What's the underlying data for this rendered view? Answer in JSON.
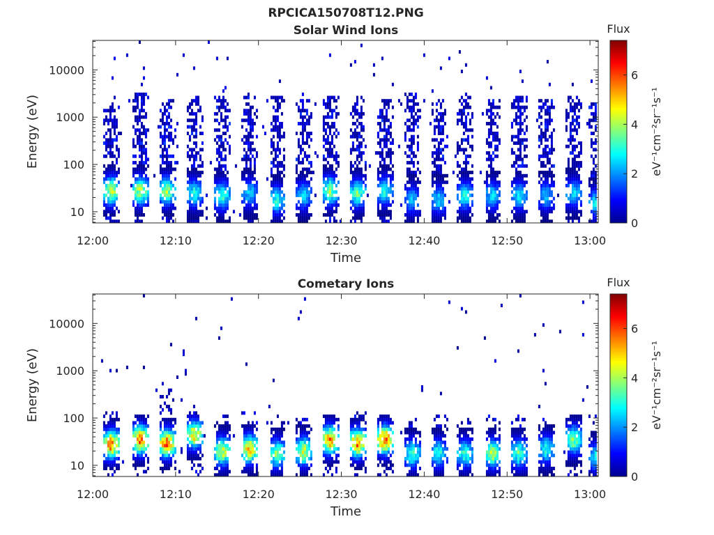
{
  "figure_title": "RPCICA150708T12.PNG",
  "chart_data": [
    {
      "type": "heatmap",
      "title": "Solar Wind Ions",
      "xlabel": "Time",
      "ylabel": "Energy (eV)",
      "x_tick_labels": [
        "12:00",
        "12:10",
        "12:20",
        "12:30",
        "12:40",
        "12:50",
        "13:00"
      ],
      "x_tick_minutes": [
        0,
        10,
        20,
        30,
        40,
        50,
        60
      ],
      "xlim_minutes": [
        0,
        61
      ],
      "y_scale": "log",
      "ylim": [
        5.8,
        42000
      ],
      "y_tick_values": [
        10,
        100,
        1000,
        10000
      ],
      "y_tick_labels": [
        "10",
        "100",
        "1000",
        "10000"
      ],
      "grid": false,
      "colorbar": {
        "title": "Flux",
        "label": "eV⁻¹cm⁻²sr⁻¹s⁻¹",
        "range": [
          0,
          7.4
        ],
        "tick_values": [
          0,
          2,
          4,
          6
        ],
        "tick_labels": [
          "0",
          "2",
          "4",
          "6"
        ],
        "colormap": "jet"
      },
      "sweep_minutes": [
        2.1,
        5.6,
        8.8,
        12.1,
        15.5,
        18.8,
        22.1,
        25.3,
        28.5,
        31.8,
        35.1,
        38.4,
        41.6,
        44.8,
        48.1,
        51.3,
        54.6,
        57.9,
        60.6
      ],
      "high_energy_max_ev": [
        1800,
        3500,
        2500,
        3200,
        2800,
        3000,
        2800,
        2600,
        2700,
        3000,
        2500,
        3500,
        2600,
        3300,
        2500,
        2900,
        2600,
        2800,
        2200
      ],
      "low_energy_peak_flux": [
        4.8,
        4.6,
        4.4,
        3.2,
        3.6,
        2.8,
        3.4,
        2.8,
        4.2,
        3.8,
        3.2,
        2.6,
        2.8,
        3.2,
        2.8,
        3.0,
        2.6,
        3.0,
        3.0
      ],
      "low_energy_peak_ev": [
        28,
        28,
        28,
        25,
        22,
        25,
        18,
        22,
        28,
        25,
        28,
        18,
        18,
        22,
        22,
        22,
        22,
        25,
        15
      ],
      "background_flux": 0.6
    },
    {
      "type": "heatmap",
      "title": "Cometary Ions",
      "xlabel": "Time",
      "ylabel": "Energy (eV)",
      "x_tick_labels": [
        "12:00",
        "12:10",
        "12:20",
        "12:30",
        "12:40",
        "12:50",
        "13:00"
      ],
      "x_tick_minutes": [
        0,
        10,
        20,
        30,
        40,
        50,
        60
      ],
      "xlim_minutes": [
        0,
        61
      ],
      "y_scale": "log",
      "ylim": [
        5.8,
        42000
      ],
      "y_tick_values": [
        10,
        100,
        1000,
        10000
      ],
      "y_tick_labels": [
        "10",
        "100",
        "1000",
        "10000"
      ],
      "grid": false,
      "colorbar": {
        "title": "Flux",
        "label": "eV⁻¹cm⁻²sr⁻¹s⁻¹",
        "range": [
          0,
          7.4
        ],
        "tick_values": [
          0,
          2,
          4,
          6
        ],
        "tick_labels": [
          "0",
          "2",
          "4",
          "6"
        ],
        "colormap": "jet"
      },
      "sweep_minutes": [
        2.1,
        5.6,
        8.8,
        12.1,
        15.5,
        18.8,
        22.1,
        25.3,
        28.5,
        31.8,
        35.1,
        38.4,
        41.6,
        44.8,
        48.1,
        51.3,
        54.6,
        57.9,
        60.6
      ],
      "high_energy_max_ev": [
        150,
        120,
        500,
        150,
        120,
        130,
        120,
        120,
        120,
        130,
        120,
        110,
        110,
        120,
        110,
        120,
        120,
        120,
        110
      ],
      "low_energy_peak_flux": [
        6.4,
        6.5,
        6.4,
        5.2,
        4.9,
        5.6,
        4.3,
        4.8,
        6.0,
        6.2,
        6.6,
        3.6,
        3.4,
        3.6,
        4.6,
        3.8,
        3.4,
        4.2,
        3.0
      ],
      "low_energy_peak_ev": [
        28,
        35,
        30,
        45,
        20,
        22,
        18,
        20,
        35,
        30,
        35,
        18,
        18,
        18,
        18,
        18,
        22,
        35,
        15
      ],
      "background_flux": 0.5
    }
  ]
}
